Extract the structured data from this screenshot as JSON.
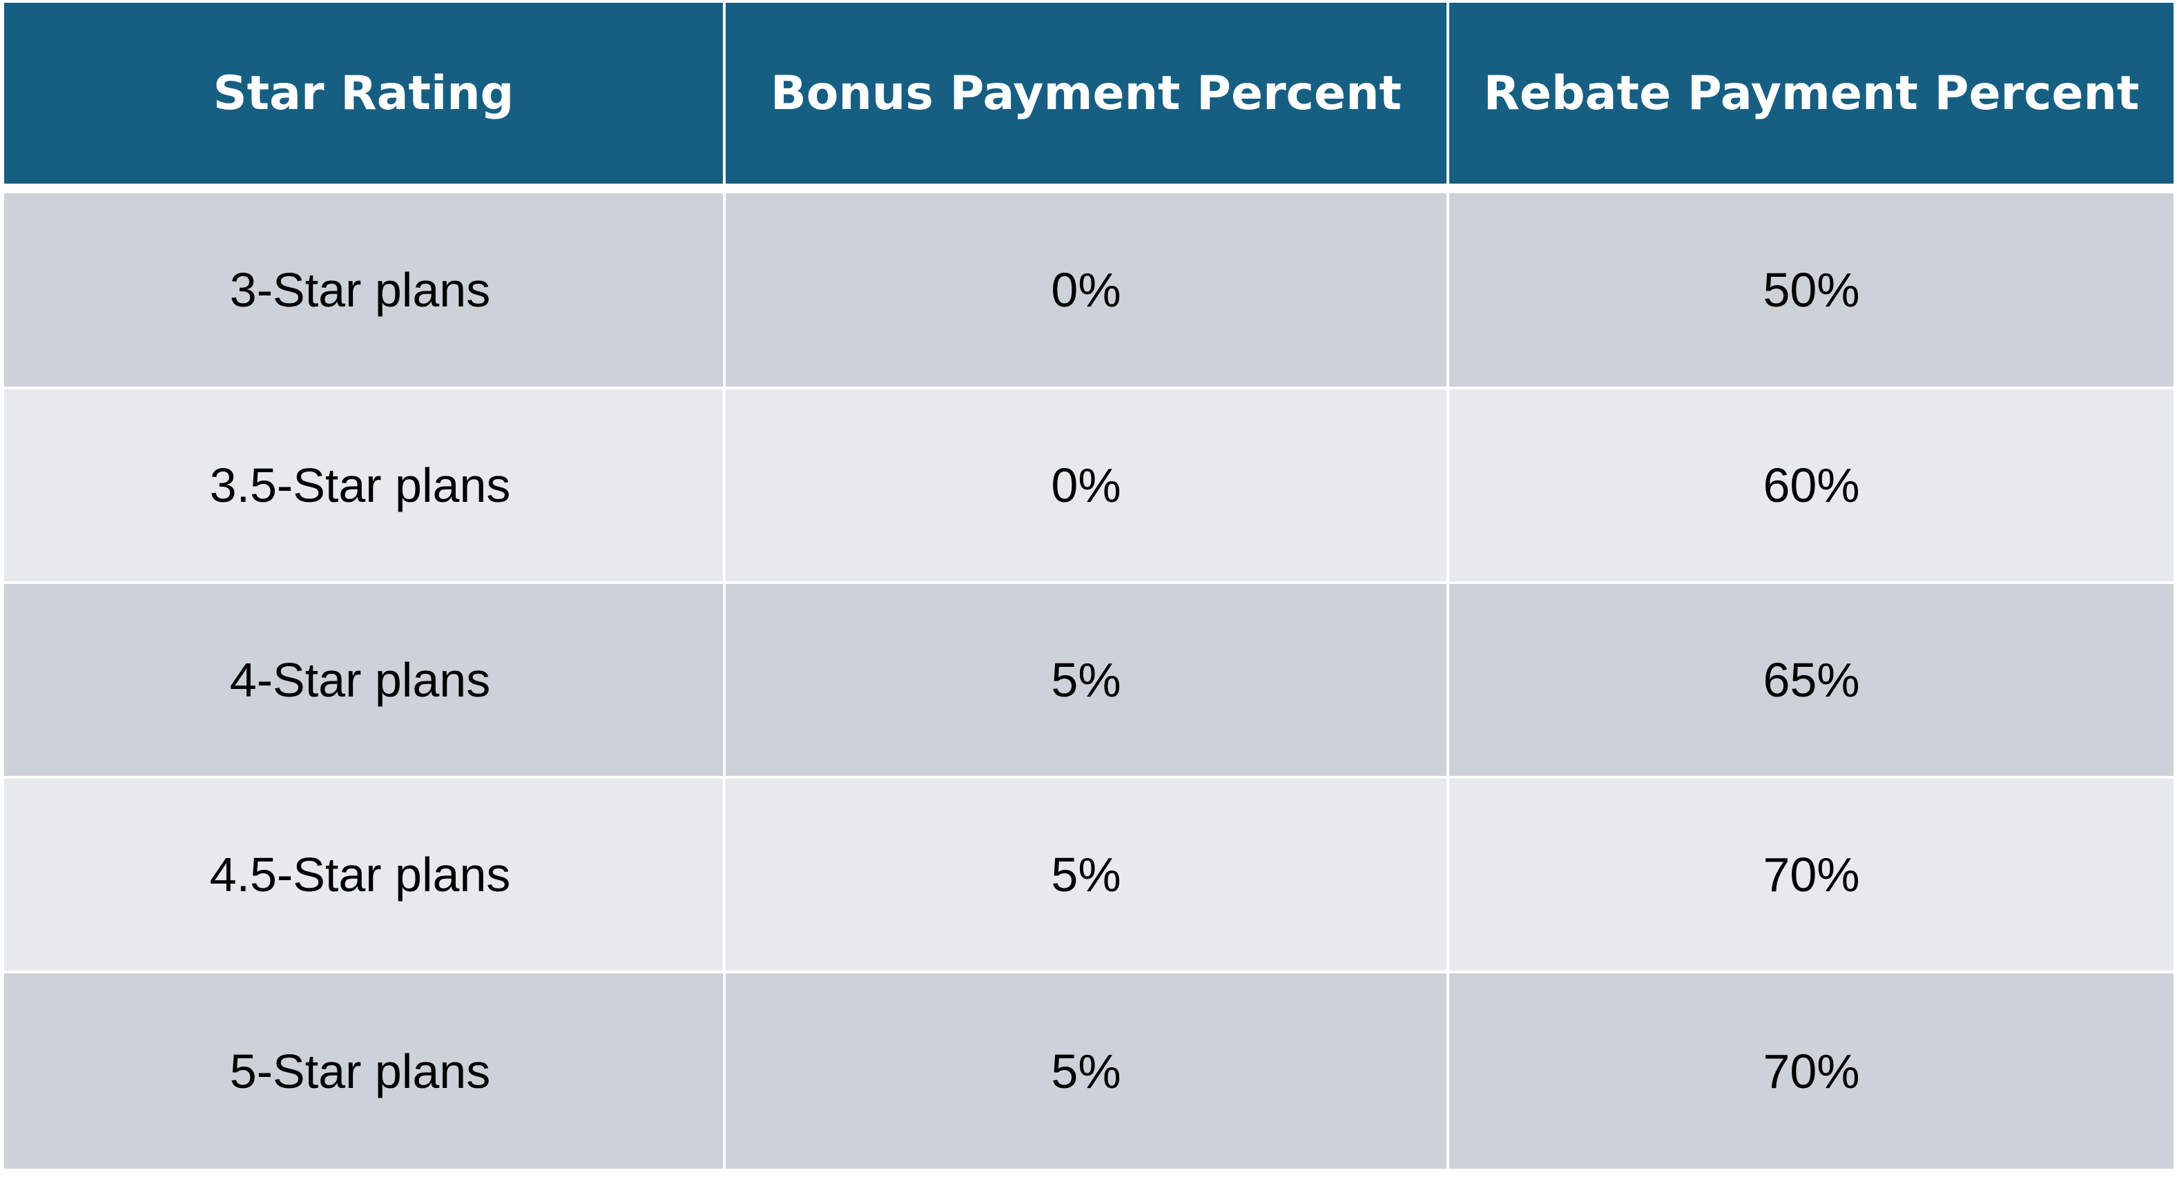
{
  "table": {
    "headers": [
      "Star Rating",
      "Bonus Payment Percent",
      "Rebate Payment Percent"
    ],
    "rows": [
      [
        "3-Star plans",
        "0%",
        "50%"
      ],
      [
        "3.5-Star plans",
        "0%",
        "60%"
      ],
      [
        "4-Star plans",
        "5%",
        "65%"
      ],
      [
        "4.5-Star plans",
        "5%",
        "70%"
      ],
      [
        "5-Star plans",
        "5%",
        "70%"
      ]
    ]
  },
  "colors": {
    "header_bg": "#175f82",
    "header_text": "#ffffff",
    "row_dark": "#cdd2d9",
    "row_light": "#e7eaed",
    "grid_line": "#ffffff"
  }
}
